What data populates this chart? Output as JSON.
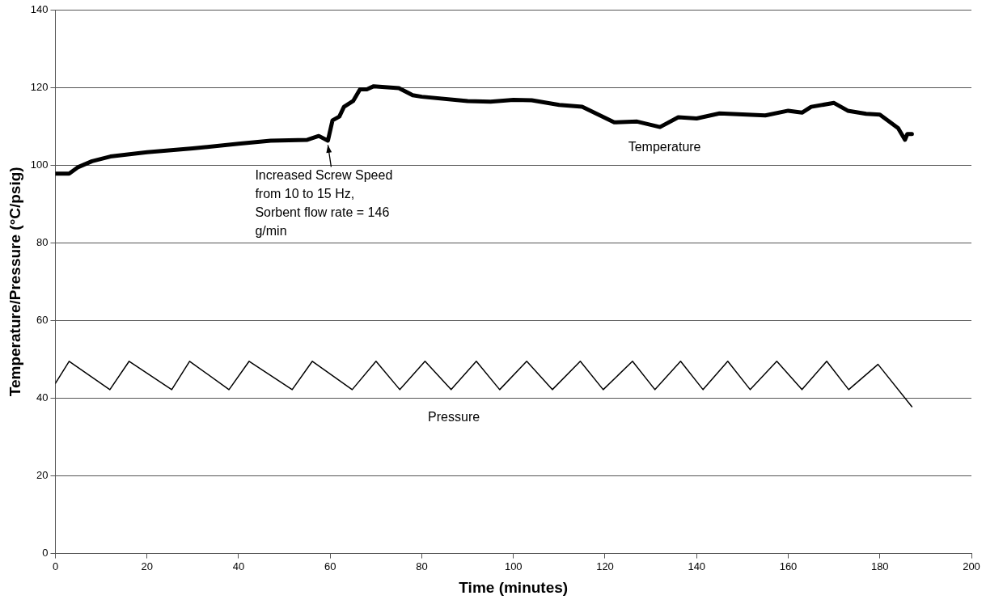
{
  "chart_data": {
    "type": "line",
    "xlabel": "Time (minutes)",
    "ylabel": "Temperature/Pressure (°C/psig)",
    "xlim": [
      0,
      200
    ],
    "xticks": [
      0,
      20,
      40,
      60,
      80,
      100,
      120,
      140,
      160,
      180,
      200
    ],
    "ylim": [
      0,
      140
    ],
    "yticks": [
      0,
      20,
      40,
      60,
      80,
      100,
      120,
      140
    ],
    "grid": "y",
    "legend": false,
    "marker": "none",
    "line_style": "solid",
    "series": [
      {
        "name": "Temperature",
        "color": "#000000",
        "x": [
          0,
          3,
          5,
          8,
          12,
          20,
          30,
          40,
          47,
          55,
          57.5,
          59.5,
          60.5,
          62,
          63,
          65,
          66.5,
          68,
          69.5,
          75,
          78,
          80,
          90,
          95,
          100,
          104,
          110,
          115,
          122,
          127,
          132,
          136,
          140,
          145,
          155,
          160,
          163,
          165,
          170,
          173,
          177,
          180,
          184,
          185.5,
          186,
          187
        ],
        "values": [
          97.8,
          97.8,
          99.5,
          101,
          102.2,
          103.3,
          104.3,
          105.5,
          106.3,
          106.5,
          107.5,
          106.3,
          111.5,
          112.5,
          115,
          116.5,
          119.5,
          119.5,
          120.3,
          119.8,
          118,
          117.6,
          116.5,
          116.3,
          116.8,
          116.7,
          115.5,
          115,
          111,
          111.2,
          109.8,
          112.3,
          112,
          113.3,
          112.8,
          114,
          113.5,
          115,
          116,
          114,
          113.2,
          113,
          109.5,
          106.5,
          108,
          108
        ]
      },
      {
        "name": "Pressure",
        "color": "#000000",
        "x": [
          0,
          3,
          11.9,
          16.1,
          25.4,
          29.3,
          37.9,
          42.3,
          51.7,
          56.1,
          64.8,
          70,
          75.2,
          80.7,
          86.4,
          91.9,
          97,
          102.9,
          108.5,
          114.6,
          119.6,
          126,
          130.9,
          136.5,
          141.4,
          146.8,
          151.7,
          157.5,
          163,
          168.4,
          173.2,
          179.6,
          187
        ],
        "values": [
          43.8,
          49.5,
          42.2,
          49.5,
          42.2,
          49.5,
          42.2,
          49.5,
          42.2,
          49.5,
          42.2,
          49.5,
          42.2,
          49.5,
          42.2,
          49.5,
          42.2,
          49.5,
          42.2,
          49.5,
          42.2,
          49.5,
          42.2,
          49.5,
          42.2,
          49.5,
          42.2,
          49.5,
          42.2,
          49.5,
          42.2,
          48.7,
          37.8
        ]
      }
    ],
    "annotations": [
      {
        "text": "Increased Screw Speed from 10 to 15 Hz, Sorbent flow rate = 146 g/min",
        "x": 59.5,
        "y": 106
      }
    ]
  }
}
